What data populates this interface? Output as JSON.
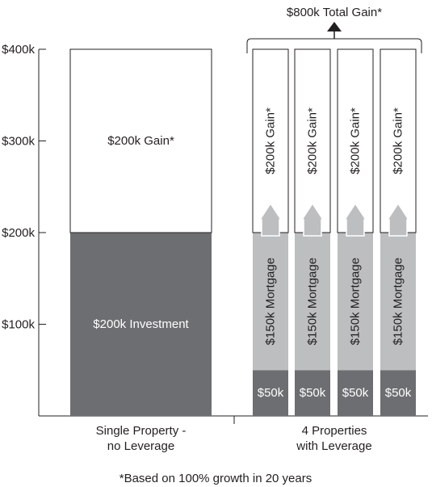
{
  "chart_data": {
    "type": "bar",
    "title": "",
    "xlabel": "",
    "ylabel": "",
    "ylim": [
      0,
      400
    ],
    "unit": "k",
    "y_ticks": [
      "$100k",
      "$200k",
      "$300k",
      "$400k"
    ],
    "y_tick_values": [
      100,
      200,
      300,
      400
    ],
    "grid": false,
    "groups": [
      {
        "category_lines": [
          "Single Property -",
          "no Leverage"
        ],
        "bars": [
          {
            "segments": [
              {
                "label": "$200k Investment",
                "start": 0,
                "value": 200,
                "color": "#6d6e71",
                "text_color": "#ffffff",
                "vertical": false
              },
              {
                "label": "$200k Gain*",
                "start": 200,
                "value": 200,
                "color": "#ffffff",
                "text_color": "#231f20",
                "vertical": false
              }
            ]
          }
        ]
      },
      {
        "category_lines": [
          "4 Properties",
          "with Leverage"
        ],
        "bars": [
          {
            "segments": [
              {
                "label": "$50k",
                "start": 0,
                "value": 50,
                "color": "#6d6e71",
                "text_color": "#ffffff",
                "vertical": false
              },
              {
                "label": "$150k Mortgage",
                "start": 50,
                "value": 150,
                "color": "#bcbec0",
                "text_color": "#231f20",
                "vertical": true
              },
              {
                "label": "$200k Gain*",
                "start": 200,
                "value": 200,
                "color": "#ffffff",
                "text_color": "#231f20",
                "vertical": true
              }
            ]
          },
          {
            "segments": [
              {
                "label": "$50k",
                "start": 0,
                "value": 50,
                "color": "#6d6e71",
                "text_color": "#ffffff",
                "vertical": false
              },
              {
                "label": "$150k Mortgage",
                "start": 50,
                "value": 150,
                "color": "#bcbec0",
                "text_color": "#231f20",
                "vertical": true
              },
              {
                "label": "$200k Gain*",
                "start": 200,
                "value": 200,
                "color": "#ffffff",
                "text_color": "#231f20",
                "vertical": true
              }
            ]
          },
          {
            "segments": [
              {
                "label": "$50k",
                "start": 0,
                "value": 50,
                "color": "#6d6e71",
                "text_color": "#ffffff",
                "vertical": false
              },
              {
                "label": "$150k Mortgage",
                "start": 50,
                "value": 150,
                "color": "#bcbec0",
                "text_color": "#231f20",
                "vertical": true
              },
              {
                "label": "$200k Gain*",
                "start": 200,
                "value": 200,
                "color": "#ffffff",
                "text_color": "#231f20",
                "vertical": true
              }
            ]
          },
          {
            "segments": [
              {
                "label": "$50k",
                "start": 0,
                "value": 50,
                "color": "#6d6e71",
                "text_color": "#ffffff",
                "vertical": false
              },
              {
                "label": "$150k Mortgage",
                "start": 50,
                "value": 150,
                "color": "#bcbec0",
                "text_color": "#231f20",
                "vertical": true
              },
              {
                "label": "$200k Gain*",
                "start": 200,
                "value": 200,
                "color": "#ffffff",
                "text_color": "#231f20",
                "vertical": true
              }
            ]
          }
        ]
      }
    ],
    "annotations": {
      "total_gain": "$800k Total Gain*",
      "footnote": "*Based on 100% growth in 20 years"
    },
    "colors": {
      "axis": "#231f20",
      "outline": "#231f20",
      "arrow": "#bcbec0",
      "arrow_stroke": "#ffffff"
    }
  }
}
